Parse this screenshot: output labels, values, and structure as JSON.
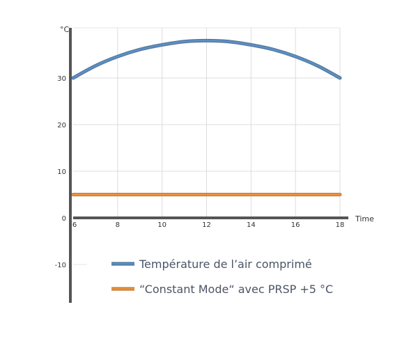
{
  "chart_data": {
    "type": "line",
    "xlabel": "Time",
    "ylabel": "°C",
    "xlim": [
      6,
      18
    ],
    "ylim": [
      -10,
      40
    ],
    "x_ticks": [
      6,
      8,
      10,
      12,
      14,
      16,
      18
    ],
    "y_ticks": [
      -10,
      0,
      10,
      20,
      30
    ],
    "grid": true,
    "legend_position": "bottom",
    "series": [
      {
        "name": "Température de l’air comprimé",
        "color": "#5b8fc4",
        "x": [
          6,
          7,
          8,
          9,
          10,
          11,
          12,
          13,
          14,
          15,
          16,
          17,
          18
        ],
        "y": [
          30,
          32.6,
          34.6,
          36.1,
          37.1,
          37.8,
          38,
          37.8,
          37.1,
          36.1,
          34.6,
          32.6,
          30
        ]
      },
      {
        "name": "“Constant Mode“ avec PRSP +5 °C",
        "color": "#e8923a",
        "x": [
          6,
          18
        ],
        "y": [
          5,
          5
        ]
      }
    ]
  }
}
